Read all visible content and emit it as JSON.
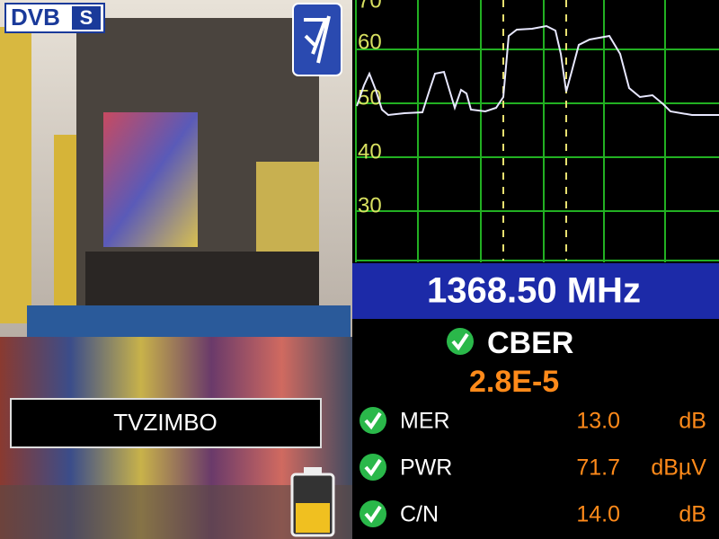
{
  "logo": {
    "text": "DVB",
    "badge": "S"
  },
  "channel": "TVZIMBO",
  "spectrum": {
    "yticks": [
      70,
      60,
      50,
      40,
      30
    ]
  },
  "frequency": "1368.50 MHz",
  "cber": {
    "label": "CBER",
    "value": "2.8E-5"
  },
  "measurements": [
    {
      "label": "MER",
      "value": "13.0",
      "unit": "dB"
    },
    {
      "label": "PWR",
      "value": "71.7",
      "unit": "dBµV"
    },
    {
      "label": "C/N",
      "value": "14.0",
      "unit": "dB"
    }
  ]
}
